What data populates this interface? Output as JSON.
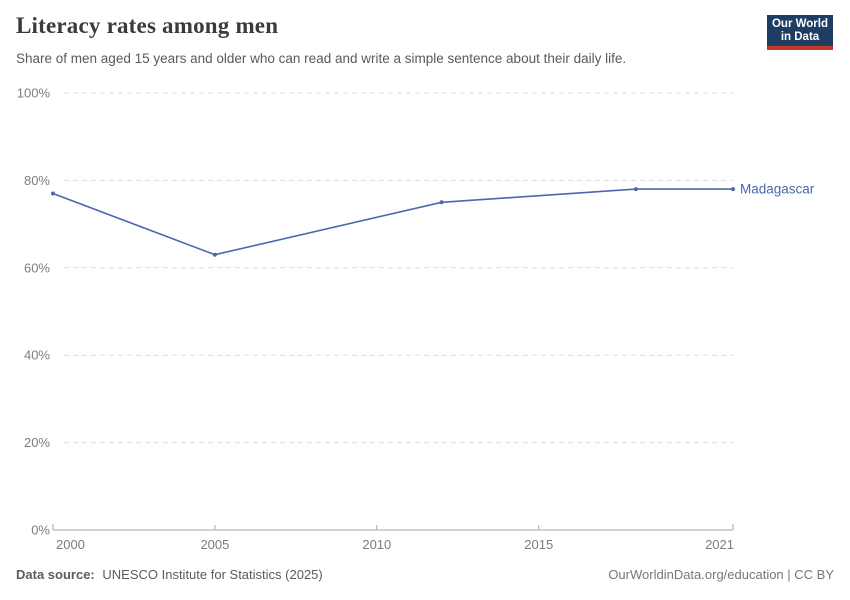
{
  "header": {
    "title": "Literacy rates among men",
    "subtitle": "Share of men aged 15 years and older who can read and write a simple sentence about their daily life."
  },
  "logo": {
    "line1": "Our World",
    "line2": "in Data",
    "bg_color": "#1d3d63",
    "accent_color": "#c0392b"
  },
  "chart_data": {
    "type": "line",
    "title": "Literacy rates among men",
    "xlabel": "",
    "ylabel": "",
    "x_range": [
      2000,
      2021
    ],
    "y_range": [
      0,
      100
    ],
    "xticks": [
      2000,
      2005,
      2010,
      2015,
      2021
    ],
    "yticks": [
      0,
      20,
      40,
      60,
      80,
      100
    ],
    "ytick_suffix": "%",
    "grid": true,
    "legend_position": "end-of-line-label",
    "series": [
      {
        "name": "Madagascar",
        "color": "#4969ac",
        "x": [
          2000,
          2005,
          2012,
          2018,
          2021
        ],
        "values": [
          77,
          63,
          75,
          78,
          78
        ]
      }
    ]
  },
  "colors": {
    "grid": "#dcdcdc",
    "axis": "#a6a6a6",
    "tick_text": "#7d7d7d",
    "accent_line": "#4969ac"
  },
  "footer": {
    "datasource_label": "Data source:",
    "datasource_value": "UNESCO Institute for Statistics (2025)",
    "credit": "OurWorldinData.org/education | CC BY"
  }
}
